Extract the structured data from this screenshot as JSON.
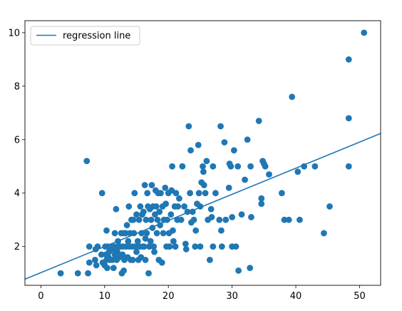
{
  "chart_data": {
    "type": "scatter",
    "title": "",
    "xlabel": "",
    "ylabel": "",
    "xlim": [
      -2.5,
      53.3
    ],
    "ylim": [
      0.55,
      10.45
    ],
    "xticks": [
      0,
      10,
      20,
      30,
      40,
      50
    ],
    "yticks": [
      2,
      4,
      6,
      8,
      10
    ],
    "grid": false,
    "legend": {
      "placement": "upper-left",
      "entries": [
        "regression line"
      ]
    },
    "colors": {
      "points": "#1f77b4",
      "line": "#1f77b4"
    },
    "series": [
      {
        "kind": "points",
        "points": [
          [
            3.1,
            1.0
          ],
          [
            5.8,
            1.0
          ],
          [
            7.4,
            1.0
          ],
          [
            7.2,
            5.2
          ],
          [
            7.6,
            2.0
          ],
          [
            7.6,
            1.4
          ],
          [
            8.5,
            1.5
          ],
          [
            8.7,
            1.3
          ],
          [
            8.9,
            2.0
          ],
          [
            8.6,
            1.9
          ],
          [
            9.6,
            4.0
          ],
          [
            9.5,
            1.7
          ],
          [
            9.7,
            1.4
          ],
          [
            10.0,
            1.3
          ],
          [
            10.1,
            2.0
          ],
          [
            10.2,
            1.7
          ],
          [
            10.3,
            2.6
          ],
          [
            10.3,
            1.5
          ],
          [
            10.4,
            1.2
          ],
          [
            10.5,
            2.0
          ],
          [
            10.6,
            1.6
          ],
          [
            10.7,
            1.8
          ],
          [
            10.8,
            1.5
          ],
          [
            11.0,
            2.0
          ],
          [
            11.2,
            1.5
          ],
          [
            11.3,
            1.9
          ],
          [
            11.4,
            1.2
          ],
          [
            11.5,
            2.0
          ],
          [
            11.6,
            1.7
          ],
          [
            11.6,
            2.5
          ],
          [
            11.8,
            3.4
          ],
          [
            11.9,
            1.5
          ],
          [
            12.0,
            1.8
          ],
          [
            12.1,
            2.2
          ],
          [
            12.2,
            2.0
          ],
          [
            12.3,
            1.6
          ],
          [
            12.5,
            2.0
          ],
          [
            12.6,
            2.5
          ],
          [
            12.7,
            1.0
          ],
          [
            12.8,
            1.7
          ],
          [
            12.9,
            2.0
          ],
          [
            13.0,
            1.1
          ],
          [
            13.0,
            2.5
          ],
          [
            13.1,
            1.5
          ],
          [
            13.3,
            2.5
          ],
          [
            13.4,
            2.0
          ],
          [
            13.5,
            2.8
          ],
          [
            13.6,
            1.6
          ],
          [
            13.7,
            2.2
          ],
          [
            13.8,
            3.5
          ],
          [
            13.9,
            2.0
          ],
          [
            14.0,
            2.5
          ],
          [
            14.1,
            1.5
          ],
          [
            14.2,
            3.0
          ],
          [
            14.3,
            2.0
          ],
          [
            14.4,
            1.5
          ],
          [
            14.5,
            3.0
          ],
          [
            14.6,
            2.5
          ],
          [
            14.7,
            4.0
          ],
          [
            14.8,
            2.0
          ],
          [
            15.0,
            1.8
          ],
          [
            15.0,
            3.2
          ],
          [
            15.2,
            2.2
          ],
          [
            15.3,
            1.5
          ],
          [
            15.4,
            3.0
          ],
          [
            15.5,
            2.0
          ],
          [
            15.6,
            3.5
          ],
          [
            15.7,
            1.6
          ],
          [
            15.8,
            2.5
          ],
          [
            15.9,
            3.2
          ],
          [
            16.0,
            2.0
          ],
          [
            16.1,
            3.3
          ],
          [
            16.2,
            2.0
          ],
          [
            16.3,
            4.3
          ],
          [
            16.4,
            2.3
          ],
          [
            16.4,
            1.5
          ],
          [
            16.5,
            3.0
          ],
          [
            16.6,
            2.5
          ],
          [
            16.7,
            4.0
          ],
          [
            16.8,
            3.5
          ],
          [
            16.9,
            1.0
          ],
          [
            17.0,
            2.0
          ],
          [
            17.1,
            3.4
          ],
          [
            17.2,
            2.2
          ],
          [
            17.3,
            3.0
          ],
          [
            17.4,
            4.3
          ],
          [
            17.5,
            2.7
          ],
          [
            17.6,
            3.5
          ],
          [
            17.7,
            2.0
          ],
          [
            17.8,
            1.8
          ],
          [
            17.9,
            3.2
          ],
          [
            18.0,
            4.1
          ],
          [
            18.1,
            3.5
          ],
          [
            18.2,
            2.5
          ],
          [
            18.3,
            3.0
          ],
          [
            18.4,
            4.0
          ],
          [
            18.5,
            1.5
          ],
          [
            18.6,
            3.3
          ],
          [
            18.7,
            2.8
          ],
          [
            18.8,
            4.0
          ],
          [
            19.0,
            1.4
          ],
          [
            19.1,
            3.5
          ],
          [
            19.2,
            2.5
          ],
          [
            19.3,
            3.0
          ],
          [
            19.5,
            4.2
          ],
          [
            19.6,
            3.6
          ],
          [
            19.7,
            2.0
          ],
          [
            19.8,
            3.0
          ],
          [
            20.0,
            4.0
          ],
          [
            20.1,
            2.5
          ],
          [
            20.2,
            2.0
          ],
          [
            20.4,
            3.2
          ],
          [
            20.5,
            4.1
          ],
          [
            20.6,
            5.0
          ],
          [
            20.7,
            2.6
          ],
          [
            20.8,
            2.2
          ],
          [
            21.0,
            3.5
          ],
          [
            21.1,
            2.0
          ],
          [
            21.2,
            4.0
          ],
          [
            21.4,
            3.0
          ],
          [
            21.5,
            3.5
          ],
          [
            21.7,
            3.8
          ],
          [
            22.0,
            3.0
          ],
          [
            22.2,
            5.0
          ],
          [
            22.5,
            3.5
          ],
          [
            22.7,
            2.1
          ],
          [
            22.8,
            1.9
          ],
          [
            23.0,
            3.3
          ],
          [
            23.2,
            6.5
          ],
          [
            23.4,
            4.0
          ],
          [
            23.5,
            5.6
          ],
          [
            23.6,
            2.9
          ],
          [
            23.8,
            3.3
          ],
          [
            24.0,
            3.0
          ],
          [
            24.2,
            2.0
          ],
          [
            24.3,
            2.6
          ],
          [
            24.5,
            3.6
          ],
          [
            24.7,
            5.8
          ],
          [
            24.8,
            4.0
          ],
          [
            25.0,
            2.0
          ],
          [
            25.0,
            3.5
          ],
          [
            25.2,
            4.4
          ],
          [
            25.4,
            5.0
          ],
          [
            25.5,
            4.8
          ],
          [
            25.6,
            4.3
          ],
          [
            25.8,
            4.0
          ],
          [
            26.0,
            5.2
          ],
          [
            26.2,
            3.0
          ],
          [
            26.5,
            1.5
          ],
          [
            26.7,
            3.4
          ],
          [
            26.8,
            3.1
          ],
          [
            27.0,
            5.0
          ],
          [
            27.0,
            2.0
          ],
          [
            27.4,
            4.0
          ],
          [
            28.0,
            3.0
          ],
          [
            28.2,
            6.5
          ],
          [
            28.3,
            2.6
          ],
          [
            28.4,
            2.0
          ],
          [
            28.8,
            5.9
          ],
          [
            29.0,
            3.0
          ],
          [
            29.5,
            4.2
          ],
          [
            29.6,
            5.1
          ],
          [
            29.8,
            5.0
          ],
          [
            30.0,
            2.0
          ],
          [
            30.0,
            3.1
          ],
          [
            30.3,
            5.6
          ],
          [
            30.6,
            2.0
          ],
          [
            30.9,
            5.0
          ],
          [
            31.0,
            1.1
          ],
          [
            31.5,
            3.2
          ],
          [
            32.0,
            4.5
          ],
          [
            32.4,
            6.0
          ],
          [
            32.8,
            1.2
          ],
          [
            32.9,
            5.0
          ],
          [
            33.0,
            3.1
          ],
          [
            34.2,
            6.7
          ],
          [
            34.6,
            3.6
          ],
          [
            34.6,
            3.8
          ],
          [
            34.8,
            5.2
          ],
          [
            35.0,
            5.1
          ],
          [
            35.2,
            5.0
          ],
          [
            35.8,
            4.7
          ],
          [
            37.8,
            4.0
          ],
          [
            38.2,
            3.0
          ],
          [
            38.9,
            3.0
          ],
          [
            39.4,
            7.6
          ],
          [
            40.3,
            4.8
          ],
          [
            40.6,
            3.0
          ],
          [
            41.3,
            5.0
          ],
          [
            43.0,
            5.0
          ],
          [
            44.4,
            2.5
          ],
          [
            45.3,
            3.5
          ],
          [
            48.3,
            9.0
          ],
          [
            48.3,
            6.8
          ],
          [
            48.3,
            5.0
          ],
          [
            50.7,
            10.0
          ]
        ]
      },
      {
        "kind": "line",
        "name": "regression line",
        "x": [
          -2.5,
          53.3
        ],
        "y": [
          0.78,
          6.23
        ]
      }
    ]
  }
}
